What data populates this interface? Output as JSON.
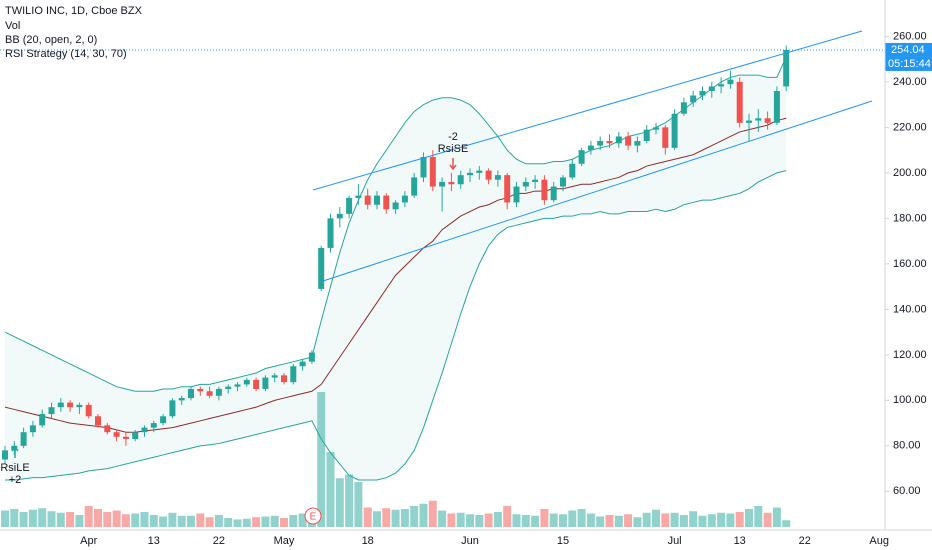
{
  "chart_data": {
    "type": "candlestick",
    "title": "TWILIO INC, 1D, Cboe BZX",
    "indicators": [
      "Vol",
      "BB (20, open, 2, 0)",
      "RSI Strategy (14, 30, 70)"
    ],
    "signals": [
      {
        "name": "RsiLE",
        "qty": "+2"
      },
      {
        "name": "RsiSE",
        "qty": "-2"
      }
    ],
    "earnings": "E",
    "last_price": 254.04,
    "countdown": "05:15:44",
    "categories": [
      null,
      null,
      null,
      null,
      null,
      null,
      null,
      null,
      null,
      "Apr",
      null,
      null,
      null,
      null,
      null,
      null,
      "13",
      null,
      null,
      null,
      null,
      null,
      null,
      "22",
      null,
      null,
      null,
      null,
      null,
      null,
      "May",
      null,
      null,
      null,
      null,
      null,
      null,
      null,
      null,
      "18",
      null,
      null,
      null,
      null,
      null,
      null,
      null,
      null,
      null,
      null,
      "Jun",
      null,
      null,
      null,
      null,
      null,
      null,
      null,
      null,
      null,
      "15",
      null,
      null,
      null,
      null,
      null,
      null,
      null,
      null,
      null,
      null,
      null,
      "Jul",
      null,
      null,
      null,
      null,
      null,
      null,
      "13",
      null,
      null,
      null,
      null,
      null,
      null,
      "22",
      null,
      null,
      null,
      null,
      null,
      null,
      null,
      "Aug"
    ],
    "open": [
      74,
      78,
      80,
      86,
      89,
      94,
      97,
      99,
      97,
      98,
      93,
      89,
      86,
      84,
      83,
      86,
      88,
      90,
      93,
      100,
      101,
      105,
      104,
      102,
      105,
      106,
      107,
      109,
      105,
      110,
      111,
      108,
      115,
      117,
      149,
      167,
      180,
      182,
      189,
      190,
      186,
      190,
      184,
      187,
      190,
      198,
      207,
      194,
      196,
      195,
      199,
      200,
      201,
      197,
      199,
      187,
      194,
      196,
      197,
      188,
      194,
      198,
      204,
      210,
      212,
      214,
      213,
      216,
      212,
      214,
      219,
      220,
      211,
      226,
      231,
      234,
      236,
      238,
      239,
      240,
      222,
      223,
      224,
      222,
      238,
      null,
      null,
      null,
      null,
      null,
      null,
      null,
      null,
      null,
      null
    ],
    "high": [
      80,
      82,
      88,
      91,
      96,
      99,
      101,
      100,
      99,
      99,
      94,
      90,
      87,
      86,
      87,
      89,
      91,
      94,
      101,
      102,
      106,
      106,
      106,
      106,
      107,
      108,
      110,
      110,
      111,
      112,
      112,
      116,
      118,
      122,
      168,
      182,
      185,
      190,
      195,
      193,
      192,
      191,
      188,
      192,
      200,
      209,
      210,
      198,
      200,
      201,
      202,
      203,
      202,
      201,
      200,
      196,
      198,
      199,
      199,
      196,
      199,
      206,
      211,
      214,
      216,
      217,
      218,
      218,
      216,
      221,
      222,
      221,
      228,
      233,
      236,
      238,
      240,
      242,
      245,
      242,
      226,
      228,
      227,
      238,
      256,
      null,
      null,
      null,
      null,
      null,
      null,
      null,
      null,
      null,
      null
    ],
    "low": [
      72,
      76,
      79,
      84,
      88,
      92,
      95,
      95,
      94,
      92,
      88,
      85,
      82,
      80,
      82,
      84,
      86,
      89,
      92,
      98,
      100,
      102,
      101,
      100,
      103,
      104,
      106,
      104,
      104,
      108,
      107,
      107,
      113,
      116,
      148,
      165,
      176,
      180,
      186,
      184,
      184,
      182,
      182,
      185,
      189,
      196,
      192,
      183,
      192,
      193,
      196,
      197,
      195,
      194,
      184,
      185,
      192,
      193,
      186,
      187,
      192,
      197,
      203,
      208,
      210,
      211,
      211,
      210,
      209,
      213,
      217,
      208,
      210,
      225,
      229,
      232,
      233,
      235,
      237,
      220,
      214,
      218,
      219,
      221,
      236,
      null,
      null,
      null,
      null,
      null,
      null,
      null,
      null,
      null,
      null
    ],
    "close": [
      78,
      80,
      86,
      89,
      94,
      97,
      99,
      97,
      98,
      93,
      89,
      86,
      84,
      83,
      86,
      88,
      90,
      93,
      100,
      101,
      105,
      104,
      102,
      105,
      106,
      107,
      109,
      105,
      110,
      111,
      108,
      115,
      117,
      121,
      167,
      180,
      182,
      189,
      190,
      186,
      190,
      184,
      187,
      190,
      198,
      207,
      194,
      196,
      195,
      199,
      200,
      201,
      197,
      199,
      187,
      194,
      196,
      197,
      188,
      194,
      198,
      204,
      210,
      212,
      214,
      213,
      216,
      212,
      214,
      219,
      220,
      211,
      226,
      231,
      234,
      236,
      238,
      239,
      241,
      222,
      223,
      224,
      222,
      236,
      254.04,
      null,
      null,
      null,
      null,
      null,
      null,
      null,
      null,
      null,
      null
    ],
    "volume": [
      2.2,
      2.4,
      2.0,
      2.3,
      2.5,
      2.1,
      1.9,
      2.0,
      1.6,
      2.8,
      2.4,
      2.0,
      2.2,
      1.7,
      1.8,
      2.0,
      1.6,
      1.4,
      1.9,
      1.5,
      1.5,
      1.8,
      1.3,
      1.6,
      1.2,
      1.0,
      1.1,
      1.3,
      1.4,
      1.5,
      1.2,
      1.6,
      1.8,
      2.2,
      18,
      10,
      6.5,
      7,
      6,
      2.6,
      2.1,
      2.5,
      2.3,
      2.4,
      2.8,
      3.1,
      3.5,
      2.2,
      1.8,
      1.9,
      1.7,
      1.6,
      1.8,
      2.0,
      2.8,
      1.7,
      1.6,
      1.5,
      2.4,
      1.8,
      1.7,
      2.2,
      2.4,
      1.8,
      1.4,
      1.6,
      1.5,
      1.7,
      1.3,
      1.9,
      2.3,
      1.8,
      1.9,
      1.6,
      2.1,
      1.5,
      1.7,
      1.9,
      1.8,
      2.0,
      2.4,
      2.8,
      1.9,
      2.6,
      0.9,
      null,
      null,
      null,
      null,
      null,
      null,
      null,
      null,
      null,
      null
    ],
    "bb_upper": [
      130,
      128,
      126,
      124,
      122,
      120,
      118,
      116,
      114,
      112,
      110,
      108,
      106,
      105,
      104,
      104,
      104,
      105,
      105,
      106,
      106,
      107,
      107,
      108,
      109,
      110,
      111,
      112,
      114,
      115,
      116,
      117,
      118,
      119,
      135,
      150,
      165,
      178,
      188,
      197,
      204,
      210,
      216,
      222,
      227,
      230,
      232,
      233,
      233,
      232,
      230,
      226,
      221,
      216,
      210,
      206,
      204,
      204,
      204,
      205,
      205,
      206,
      208,
      210,
      211,
      212,
      214,
      216,
      217,
      218,
      220,
      222,
      225,
      228,
      231,
      234,
      237,
      240,
      242,
      243,
      243,
      243,
      242,
      242,
      251,
      null,
      null,
      null,
      null,
      null,
      null,
      null,
      null,
      null,
      null
    ],
    "bb_basis": [
      97,
      96,
      95,
      94,
      93,
      92,
      91,
      90,
      89.5,
      89,
      88.5,
      88,
      87,
      86,
      86,
      86.5,
      87,
      87.5,
      88,
      89,
      90,
      91,
      92,
      93,
      94,
      95,
      96,
      97,
      98.5,
      100,
      101,
      102,
      103,
      104,
      107,
      113,
      119,
      125,
      131,
      137,
      143,
      149,
      155,
      159,
      163,
      167,
      170,
      175,
      178,
      181,
      183,
      185,
      186,
      188,
      189,
      191,
      191,
      192,
      192,
      193,
      193,
      194,
      195,
      195,
      196,
      197,
      198,
      200,
      201,
      203,
      204,
      205,
      206,
      207,
      208,
      210,
      212,
      214,
      216,
      218,
      219,
      220,
      221,
      223,
      224,
      null,
      null,
      null,
      null,
      null,
      null,
      null,
      null,
      null,
      null
    ],
    "bb_lower": [
      65,
      65,
      65.5,
      66,
      66,
      66.5,
      67,
      67.5,
      68,
      69,
      69.5,
      70,
      71,
      72,
      73,
      74,
      75,
      76,
      77,
      78,
      79,
      80,
      80.5,
      81,
      82,
      83,
      84,
      85,
      86,
      87,
      88,
      89,
      90,
      91,
      83,
      77,
      72,
      67,
      65,
      65,
      65,
      66,
      68,
      72,
      78,
      88,
      100,
      112,
      125,
      138,
      150,
      160,
      168,
      173,
      176,
      177,
      178,
      179,
      180,
      180,
      181,
      181,
      182,
      182,
      183,
      182,
      182,
      183,
      183,
      183,
      184,
      183,
      184,
      186,
      187,
      188,
      188,
      189,
      190,
      191,
      193,
      196,
      198,
      200,
      201,
      null,
      null,
      null,
      null,
      null,
      null,
      null,
      null,
      null,
      null
    ],
    "up_color": "#26a69a",
    "down_color": "#ef5350",
    "band_color": "#26a69a",
    "basis_color": "#8e2b2b",
    "ylim": [
      43,
      276
    ],
    "yticks": [
      {
        "value": 60,
        "label": "60.00"
      },
      {
        "value": 80,
        "label": "80.00"
      },
      {
        "value": 100,
        "label": "100.00"
      },
      {
        "value": 120,
        "label": "120.00"
      },
      {
        "value": 140,
        "label": "140.00"
      },
      {
        "value": 160,
        "label": "160.00"
      },
      {
        "value": 180,
        "label": "180.00"
      },
      {
        "value": 200,
        "label": "200.00"
      },
      {
        "value": 220,
        "label": "220.00"
      },
      {
        "value": 240,
        "label": "240.00"
      },
      {
        "value": 260,
        "label": "260.00"
      }
    ],
    "grid": false
  }
}
